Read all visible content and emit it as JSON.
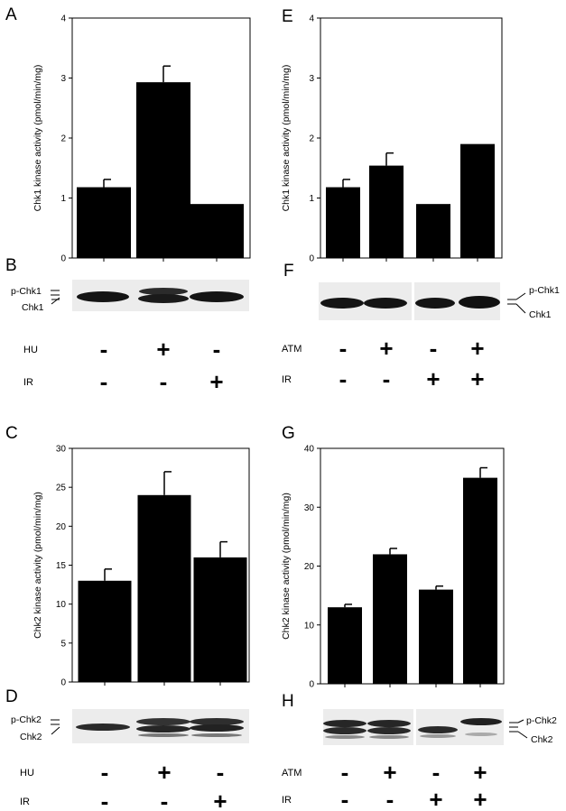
{
  "panels": {
    "A": "A",
    "B": "B",
    "C": "C",
    "D": "D",
    "E": "E",
    "F": "F",
    "G": "G",
    "H": "H"
  },
  "chart_data": [
    {
      "panel": "A",
      "type": "bar",
      "ylabel": "Chk1 kinase activity (pmol/min/mg)",
      "ylim": [
        0,
        4
      ],
      "yticks": [
        0,
        1,
        2,
        3,
        4
      ],
      "values": [
        1.18,
        2.93,
        0.9
      ],
      "errors": [
        0.13,
        0.27,
        0
      ],
      "treatments": [
        {
          "name": "HU",
          "signs": [
            "-",
            "+",
            "-"
          ]
        },
        {
          "name": "IR",
          "signs": [
            "-",
            "-",
            "+"
          ]
        }
      ]
    },
    {
      "panel": "E",
      "type": "bar",
      "ylabel": "Chk1 kinase activity (pmol/min/mg)",
      "ylim": [
        0,
        4
      ],
      "yticks": [
        0,
        1,
        2,
        3,
        4
      ],
      "values": [
        1.18,
        1.54,
        0.9,
        1.9
      ],
      "errors": [
        0.13,
        0.21,
        0,
        0
      ],
      "treatments": [
        {
          "name": "ATM",
          "signs": [
            "-",
            "+",
            "-",
            "+"
          ]
        },
        {
          "name": "IR",
          "signs": [
            "-",
            "-",
            "+",
            "+"
          ]
        }
      ]
    },
    {
      "panel": "C",
      "type": "bar",
      "ylabel": "Chk2 kinase activity (pmol/min/mg)",
      "ylim": [
        0,
        30
      ],
      "yticks": [
        0,
        5,
        10,
        15,
        20,
        25,
        30
      ],
      "values": [
        13,
        24,
        16
      ],
      "errors": [
        1.5,
        3,
        2
      ],
      "treatments": [
        {
          "name": "HU",
          "signs": [
            "-",
            "+",
            "-"
          ]
        },
        {
          "name": "IR",
          "signs": [
            "-",
            "-",
            "+"
          ]
        }
      ]
    },
    {
      "panel": "G",
      "type": "bar",
      "ylabel": "Chk2 kinase activity (pmol/min/mg)",
      "ylim": [
        0,
        40
      ],
      "yticks": [
        0,
        10,
        20,
        30,
        40
      ],
      "values": [
        13,
        22,
        16,
        35
      ],
      "errors": [
        0.5,
        1,
        0.6,
        1.7
      ],
      "treatments": [
        {
          "name": "ATM",
          "signs": [
            "-",
            "+",
            "-",
            "+"
          ]
        },
        {
          "name": "IR",
          "signs": [
            "-",
            "-",
            "+",
            "+"
          ]
        }
      ]
    }
  ],
  "blots": {
    "B": {
      "labels": [
        "p-Chk1",
        "Chk1"
      ]
    },
    "F": {
      "labels": [
        "p-Chk1",
        "Chk1"
      ]
    },
    "D": {
      "labels": [
        "p-Chk2",
        "Chk2"
      ]
    },
    "H": {
      "labels": [
        "p-Chk2",
        "Chk2"
      ]
    }
  }
}
